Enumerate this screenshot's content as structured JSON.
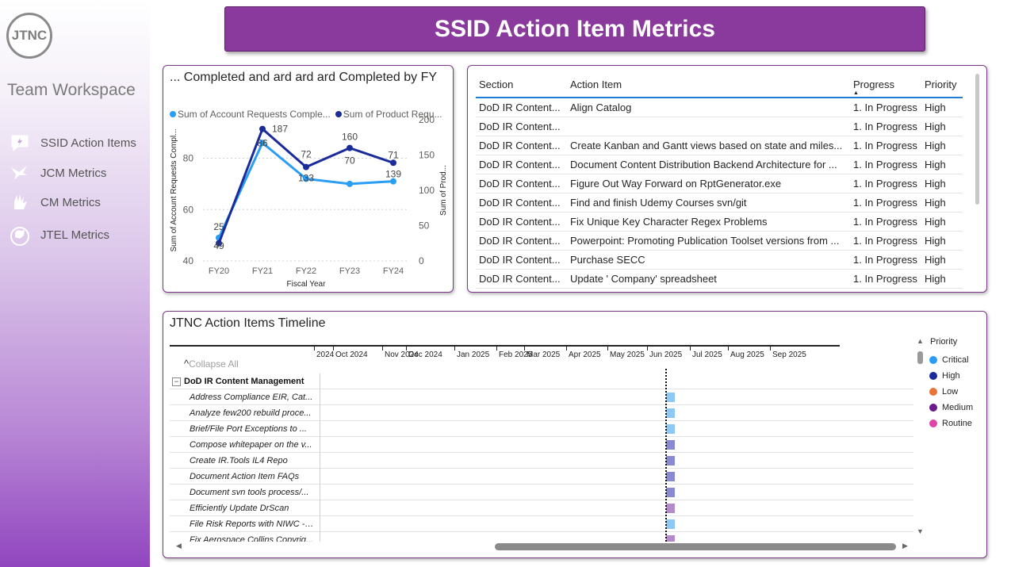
{
  "sidebar": {
    "logo_text": "JTNC",
    "workspace": "Team Workspace",
    "items": [
      {
        "label": "SSID Action Items",
        "icon": "chat-lightning-icon"
      },
      {
        "label": "JCM Metrics",
        "icon": "bird-icon"
      },
      {
        "label": "CM Metrics",
        "icon": "hand-icon"
      },
      {
        "label": "JTEL Metrics",
        "icon": "fist-icon"
      }
    ]
  },
  "header": {
    "title": "SSID Action Item Metrics"
  },
  "fy_chart": {
    "title": "... Completed and ard ard ard Completed by FY",
    "legend": [
      "Sum of Account Requests Comple...",
      "Sum of Product Requ..."
    ],
    "left_ylabel": "Sum of Account Requests Compl...",
    "right_ylabel": "Sum of Prod...",
    "left_ticks": [
      "80",
      "60",
      "40"
    ],
    "right_ticks": [
      "200",
      "150",
      "100",
      "50",
      "0"
    ]
  },
  "chart_data": {
    "type": "line",
    "categories": [
      "FY20",
      "FY21",
      "FY22",
      "FY23",
      "FY24"
    ],
    "xlabel": "Fiscal Year",
    "ylabel": "Sum of Account Requests Compl...",
    "ylim": [
      40,
      95
    ],
    "y2lim": [
      0,
      200
    ],
    "series": [
      {
        "name": "Sum of Account Requests Comple...",
        "axis": "left",
        "color": "#2a9df4",
        "values": [
          49,
          86,
          72,
          70,
          71
        ]
      },
      {
        "name": "Sum of Product Requ...",
        "axis": "right",
        "color": "#1a2b9a",
        "values": [
          25,
          187,
          133,
          160,
          139
        ]
      }
    ],
    "point_labels": {
      "FY20": [
        "25",
        "49"
      ],
      "FY21": [
        "187",
        "86"
      ],
      "FY22": [
        "72",
        "133"
      ],
      "FY23": [
        "160",
        "70"
      ],
      "FY24": [
        "71",
        "139"
      ]
    }
  },
  "table": {
    "headers": [
      "Section",
      "Action Item",
      "Progress",
      "Priority"
    ],
    "rows": [
      [
        "DoD IR Content...",
        "Align Catalog",
        "1. In Progress",
        "High"
      ],
      [
        "DoD IR Content...",
        "",
        "1. In Progress",
        "High"
      ],
      [
        "DoD IR Content...",
        "Create Kanban and Gantt views based on state and miles...",
        "1. In Progress",
        "High"
      ],
      [
        "DoD IR Content...",
        "Document Content Distribution Backend Architecture for ...",
        "1. In Progress",
        "High"
      ],
      [
        "DoD IR Content...",
        "Figure Out Way Forward on RptGenerator.exe",
        "1. In Progress",
        "High"
      ],
      [
        "DoD IR Content...",
        "Find and finish Udemy Courses svn/git",
        "1. In Progress",
        "High"
      ],
      [
        "DoD IR Content...",
        "Fix Unique Key Character Regex Problems",
        "1. In Progress",
        "High"
      ],
      [
        "DoD IR Content...",
        "Powerpoint: Promoting Publication Toolset versions from ...",
        "1. In Progress",
        "High"
      ],
      [
        "DoD IR Content...",
        "Purchase SECC",
        "1. In Progress",
        "High"
      ],
      [
        "DoD IR Content...",
        "Update '      Company' spreadsheet",
        "1. In Progress",
        "High"
      ]
    ]
  },
  "timeline": {
    "title": "JTNC Action Items Timeline",
    "collapse_label": "Collapse All",
    "months": [
      "2024",
      "Oct 2024",
      "Nov 2024",
      "Dec 2024",
      "Jan 2025",
      "Feb 2025",
      "Mar 2025",
      "Apr 2025",
      "May 2025",
      "Jun 2025",
      "Jul 2025",
      "Aug 2025",
      "Sep 2025"
    ],
    "group": "DoD IR Content Management",
    "tasks": [
      {
        "label": "Address Compliance EIR, Cat...",
        "color": "#8ec9f5"
      },
      {
        "label": "Analyze few200 rebuild proce...",
        "color": "#8ec9f5"
      },
      {
        "label": "Brief/File Port Exceptions to ...",
        "color": "#8ec9f5"
      },
      {
        "label": "Compose whitepaper on the v...",
        "color": "#8a8ad0"
      },
      {
        "label": "Create IR.Tools IL4 Repo",
        "color": "#8a8ad0"
      },
      {
        "label": "Document Action Item FAQs",
        "color": "#8a8ad0"
      },
      {
        "label": "Document svn tools process/...",
        "color": "#8a8ad0"
      },
      {
        "label": "Efficiently Update DrScan",
        "color": "#b58acb"
      },
      {
        "label": "File Risk Reports with NIWC --...",
        "color": "#8ec9f5"
      },
      {
        "label": "Fix Aerospace Collins Copyrig...",
        "color": "#b58acb"
      }
    ],
    "legend_title": "Priority",
    "legend": [
      {
        "label": "Critical",
        "color": "#2a9df4"
      },
      {
        "label": "High",
        "color": "#1a2b9a"
      },
      {
        "label": "Low",
        "color": "#e8743b"
      },
      {
        "label": "Medium",
        "color": "#6b1a8a"
      },
      {
        "label": "Routine",
        "color": "#e044a7"
      }
    ]
  }
}
